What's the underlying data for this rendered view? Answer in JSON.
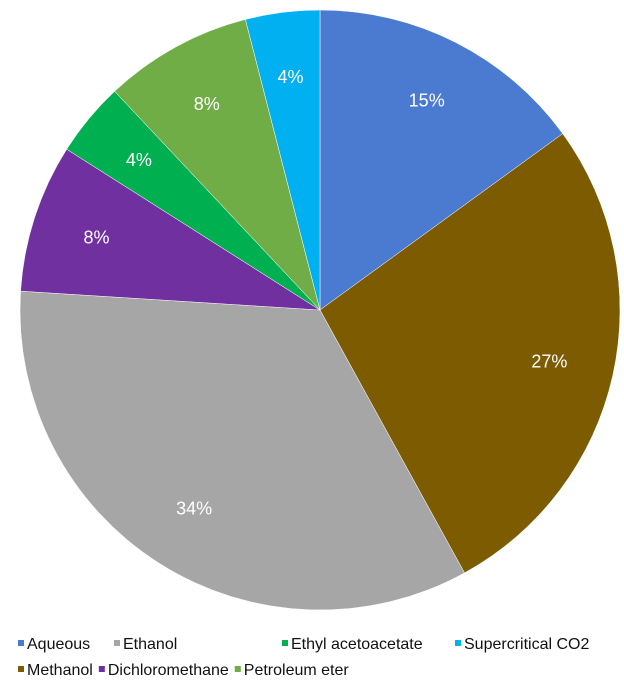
{
  "chart_data": {
    "type": "pie",
    "start_angle_deg": 0,
    "direction": "clockwise",
    "legend_position": "bottom",
    "slices": [
      {
        "name": "Aqueous",
        "value": 15,
        "label": "15%",
        "color": "#4A7BD0"
      },
      {
        "name": "Methanol",
        "value": 27,
        "label": "27%",
        "color": "#7D5B00"
      },
      {
        "name": "Ethanol",
        "value": 34,
        "label": "34%",
        "color": "#A6A6A6"
      },
      {
        "name": "Dichloromethane",
        "value": 8,
        "label": "8%",
        "color": "#7030A0"
      },
      {
        "name": "Ethyl acetoacetate",
        "value": 4,
        "label": "4%",
        "color": "#00B050"
      },
      {
        "name": "Petroleum eter",
        "value": 8,
        "label": "8%",
        "color": "#70AD47"
      },
      {
        "name": "Supercritical CO2",
        "value": 4,
        "label": "4%",
        "color": "#00B0F0"
      }
    ],
    "legend": {
      "rows": [
        [
          "Aqueous",
          "Ethanol",
          "Ethyl acetoacetate",
          "Supercritical CO2"
        ],
        [
          "Methanol",
          "Dichloromethane",
          "Petroleum eter"
        ]
      ]
    }
  }
}
